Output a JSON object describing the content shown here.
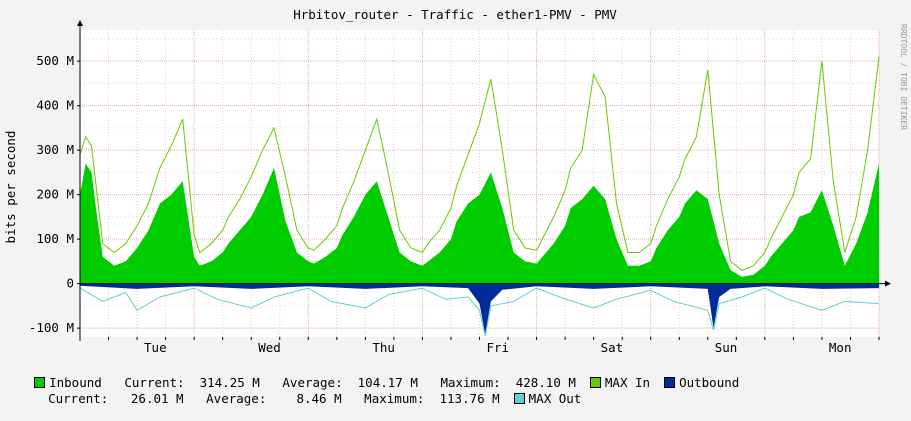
{
  "chart_data": {
    "type": "area",
    "title": "Hrbitov_router - Traffic - ether1-PMV - PMV",
    "ylabel": "bits per second",
    "watermark": "RRDTOOL / TOBI OETIKER",
    "ylim": [
      -120,
      570
    ],
    "yticks": [
      {
        "value": -100,
        "label": "-100 M"
      },
      {
        "value": 0,
        "label": "0"
      },
      {
        "value": 100,
        "label": "100 M"
      },
      {
        "value": 200,
        "label": "200 M"
      },
      {
        "value": 300,
        "label": "300 M"
      },
      {
        "value": 400,
        "label": "400 M"
      },
      {
        "value": 500,
        "label": "500 M"
      }
    ],
    "xrange_days": [
      0,
      7
    ],
    "xticks": [
      {
        "value": 0.66,
        "label": "Tue"
      },
      {
        "value": 1.66,
        "label": "Wed"
      },
      {
        "value": 2.66,
        "label": "Thu"
      },
      {
        "value": 3.66,
        "label": "Fri"
      },
      {
        "value": 4.66,
        "label": "Sat"
      },
      {
        "value": 5.66,
        "label": "Sun"
      },
      {
        "value": 6.66,
        "label": "Mon"
      }
    ],
    "colors": {
      "inbound": "#00cc00",
      "max_in": "#66cc00",
      "outbound": "#002a97",
      "max_out": "#5fd0d0",
      "grid": "#e8a0a0",
      "axis": "#000000"
    },
    "series": [
      {
        "name": "Inbound",
        "kind": "area",
        "x": [
          0,
          0.05,
          0.1,
          0.15,
          0.2,
          0.3,
          0.4,
          0.5,
          0.6,
          0.7,
          0.8,
          0.9,
          1.0,
          1.05,
          1.15,
          1.25,
          1.3,
          1.4,
          1.5,
          1.6,
          1.7,
          1.8,
          1.9,
          2.0,
          2.05,
          2.15,
          2.25,
          2.3,
          2.4,
          2.5,
          2.6,
          2.7,
          2.8,
          2.9,
          3.0,
          3.05,
          3.15,
          3.25,
          3.3,
          3.4,
          3.5,
          3.6,
          3.7,
          3.8,
          3.9,
          4.0,
          4.05,
          4.15,
          4.25,
          4.3,
          4.4,
          4.5,
          4.6,
          4.7,
          4.8,
          4.9,
          5.0,
          5.05,
          5.15,
          5.25,
          5.3,
          5.4,
          5.5,
          5.6,
          5.7,
          5.8,
          5.9,
          6.0,
          6.05,
          6.15,
          6.25,
          6.3,
          6.4,
          6.5,
          6.6,
          6.7,
          6.8,
          6.9,
          7.0
        ],
        "values": [
          200,
          270,
          250,
          150,
          60,
          40,
          50,
          80,
          120,
          180,
          200,
          230,
          60,
          40,
          50,
          70,
          90,
          120,
          150,
          200,
          260,
          140,
          70,
          50,
          45,
          60,
          80,
          110,
          150,
          200,
          230,
          150,
          70,
          50,
          40,
          50,
          70,
          100,
          140,
          180,
          200,
          250,
          170,
          70,
          50,
          45,
          60,
          90,
          130,
          170,
          190,
          220,
          190,
          100,
          40,
          40,
          50,
          80,
          120,
          150,
          180,
          210,
          190,
          90,
          30,
          15,
          20,
          40,
          60,
          90,
          120,
          150,
          160,
          210,
          130,
          40,
          90,
          160,
          270
        ]
      },
      {
        "name": "MAX In",
        "kind": "line",
        "x": [
          0,
          0.05,
          0.1,
          0.15,
          0.2,
          0.3,
          0.4,
          0.5,
          0.6,
          0.7,
          0.8,
          0.9,
          1.0,
          1.05,
          1.15,
          1.25,
          1.3,
          1.4,
          1.5,
          1.6,
          1.7,
          1.8,
          1.9,
          2.0,
          2.05,
          2.15,
          2.25,
          2.3,
          2.4,
          2.5,
          2.6,
          2.7,
          2.8,
          2.9,
          3.0,
          3.05,
          3.15,
          3.25,
          3.3,
          3.4,
          3.5,
          3.6,
          3.7,
          3.8,
          3.9,
          4.0,
          4.05,
          4.15,
          4.25,
          4.3,
          4.4,
          4.5,
          4.6,
          4.7,
          4.8,
          4.9,
          5.0,
          5.05,
          5.15,
          5.25,
          5.3,
          5.4,
          5.5,
          5.6,
          5.7,
          5.8,
          5.9,
          6.0,
          6.05,
          6.15,
          6.25,
          6.3,
          6.4,
          6.5,
          6.6,
          6.7,
          6.8,
          6.9,
          7.0
        ],
        "values": [
          290,
          330,
          310,
          200,
          90,
          70,
          90,
          130,
          180,
          260,
          310,
          370,
          110,
          70,
          90,
          120,
          150,
          190,
          240,
          300,
          350,
          240,
          120,
          80,
          75,
          100,
          130,
          170,
          230,
          300,
          370,
          250,
          120,
          80,
          70,
          90,
          120,
          170,
          220,
          290,
          360,
          460,
          300,
          120,
          80,
          75,
          100,
          150,
          210,
          260,
          300,
          470,
          420,
          180,
          70,
          70,
          90,
          130,
          190,
          240,
          280,
          330,
          480,
          200,
          50,
          30,
          40,
          70,
          100,
          150,
          200,
          250,
          280,
          500,
          230,
          70,
          150,
          300,
          510
        ]
      },
      {
        "name": "Outbound",
        "kind": "area",
        "x": [
          0,
          0.5,
          1.0,
          1.5,
          2.0,
          2.5,
          3.0,
          3.4,
          3.5,
          3.55,
          3.6,
          3.7,
          4.0,
          4.5,
          5.0,
          5.5,
          5.55,
          5.6,
          5.7,
          6.0,
          6.5,
          7.0
        ],
        "values": [
          -5,
          -12,
          -6,
          -12,
          -6,
          -12,
          -6,
          -10,
          -45,
          -114,
          -40,
          -14,
          -6,
          -12,
          -6,
          -12,
          -100,
          -30,
          -12,
          -6,
          -12,
          -10
        ]
      },
      {
        "name": "MAX Out",
        "kind": "line",
        "x": [
          0,
          0.2,
          0.4,
          0.5,
          0.7,
          1.0,
          1.2,
          1.5,
          1.7,
          2.0,
          2.2,
          2.5,
          2.7,
          3.0,
          3.2,
          3.4,
          3.5,
          3.55,
          3.6,
          3.8,
          4.0,
          4.2,
          4.5,
          4.7,
          5.0,
          5.2,
          5.5,
          5.55,
          5.6,
          5.8,
          6.0,
          6.2,
          6.5,
          6.7,
          7.0
        ],
        "values": [
          -10,
          -40,
          -20,
          -60,
          -30,
          -10,
          -35,
          -55,
          -30,
          -10,
          -40,
          -55,
          -25,
          -10,
          -35,
          -30,
          -60,
          -118,
          -50,
          -40,
          -10,
          -30,
          -55,
          -35,
          -15,
          -40,
          -60,
          -105,
          -45,
          -30,
          -10,
          -35,
          -60,
          -40,
          -45
        ]
      }
    ]
  },
  "legend": {
    "row1": [
      {
        "swatch": "#00cc00",
        "text": "Inbound   Current:  314.25 M   Average:  104.17 M   Maximum:  428.10 M"
      },
      {
        "swatch": "#66cc00",
        "text": "MAX In"
      },
      {
        "swatch": "#002a97",
        "text": "Outbound"
      }
    ],
    "row2_text": "Current:   26.01 M   Average:    8.46 M   Maximum:  113.76 M",
    "row2_swatch": {
      "swatch": "#5fd0d0",
      "text": "MAX Out"
    }
  }
}
